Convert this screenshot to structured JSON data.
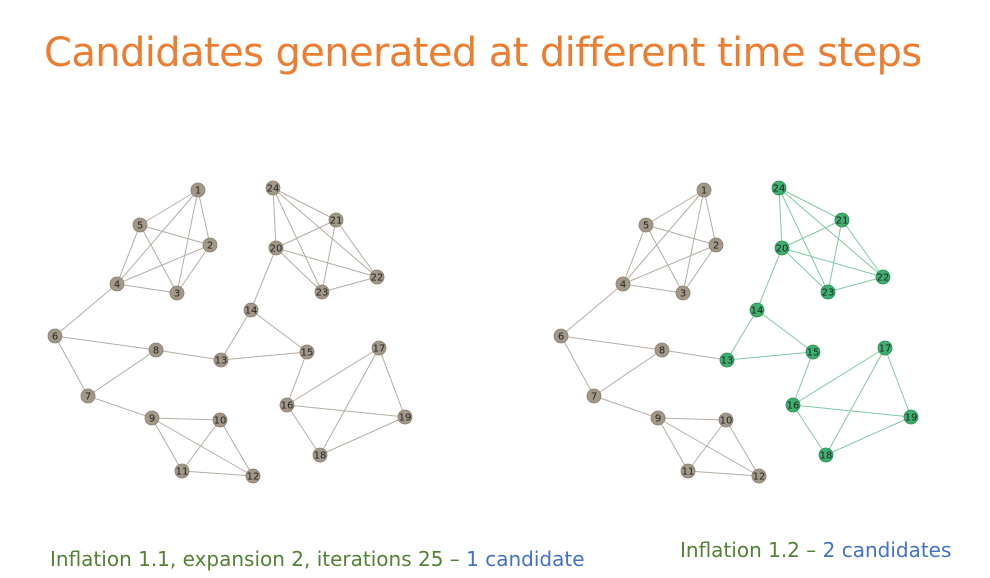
{
  "title": "Candidates generated at different time steps",
  "colors": {
    "title": "#ED7D31",
    "caption_green": "#548235",
    "caption_blue": "#4472C4",
    "node_gray": "#A39888",
    "node_gray_stroke": "#8A7F70",
    "edge_gray": "#B5ADA3",
    "node_green": "#3DAF6F",
    "node_green_stroke": "#2C8E57",
    "edge_green": "#7FCAA4",
    "label": "#222222"
  },
  "nodes": [
    "1",
    "2",
    "3",
    "4",
    "5",
    "6",
    "7",
    "8",
    "9",
    "10",
    "11",
    "12",
    "13",
    "14",
    "15",
    "16",
    "17",
    "18",
    "19",
    "20",
    "21",
    "22",
    "23",
    "24"
  ],
  "edges": [
    [
      "1",
      "5"
    ],
    [
      "1",
      "4"
    ],
    [
      "1",
      "3"
    ],
    [
      "1",
      "2"
    ],
    [
      "5",
      "2"
    ],
    [
      "5",
      "4"
    ],
    [
      "5",
      "3"
    ],
    [
      "2",
      "4"
    ],
    [
      "2",
      "3"
    ],
    [
      "4",
      "3"
    ],
    [
      "4",
      "6"
    ],
    [
      "6",
      "8"
    ],
    [
      "6",
      "7"
    ],
    [
      "7",
      "8"
    ],
    [
      "7",
      "9"
    ],
    [
      "8",
      "13"
    ],
    [
      "9",
      "10"
    ],
    [
      "9",
      "11"
    ],
    [
      "9",
      "12"
    ],
    [
      "10",
      "11"
    ],
    [
      "10",
      "12"
    ],
    [
      "11",
      "12"
    ],
    [
      "13",
      "14"
    ],
    [
      "13",
      "15"
    ],
    [
      "14",
      "15"
    ],
    [
      "14",
      "20"
    ],
    [
      "24",
      "21"
    ],
    [
      "24",
      "20"
    ],
    [
      "24",
      "23"
    ],
    [
      "24",
      "22"
    ],
    [
      "20",
      "21"
    ],
    [
      "20",
      "22"
    ],
    [
      "20",
      "23"
    ],
    [
      "21",
      "22"
    ],
    [
      "21",
      "23"
    ],
    [
      "22",
      "23"
    ],
    [
      "15",
      "16"
    ],
    [
      "16",
      "17"
    ],
    [
      "16",
      "19"
    ],
    [
      "16",
      "18"
    ],
    [
      "17",
      "18"
    ],
    [
      "17",
      "19"
    ],
    [
      "18",
      "19"
    ]
  ],
  "graphs": [
    {
      "name": "left-graph",
      "highlighted_nodes": []
    },
    {
      "name": "right-graph",
      "highlighted_nodes": [
        "13",
        "14",
        "15",
        "16",
        "17",
        "18",
        "19",
        "20",
        "21",
        "22",
        "23",
        "24"
      ]
    }
  ],
  "captions": {
    "left": {
      "green": "Inflation 1.1, expansion 2, iterations 25 –",
      "blue": "1 candidate"
    },
    "right": {
      "green": "Inflation 1.2 –",
      "blue": "2 candidates"
    }
  }
}
